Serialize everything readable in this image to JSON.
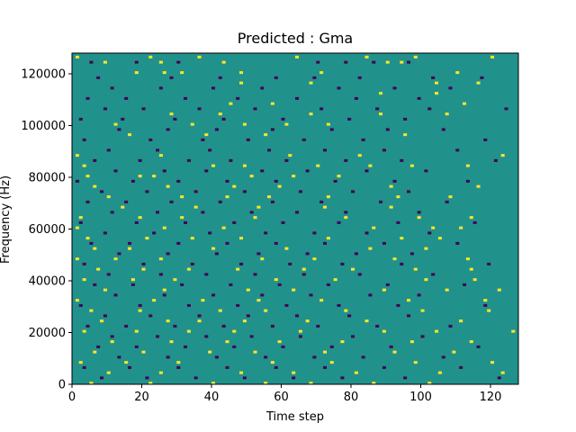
{
  "chart_data": {
    "type": "heatmap",
    "title": "Predicted : Gma",
    "xlabel": "Time step",
    "ylabel": "Frequency (Hz)",
    "xlim": [
      0,
      128
    ],
    "ylim": [
      0,
      128000
    ],
    "x_ticks": [
      0,
      20,
      40,
      60,
      80,
      100,
      120
    ],
    "y_ticks": [
      0,
      20000,
      40000,
      60000,
      80000,
      100000,
      120000
    ],
    "x_tick_labels": [
      "0",
      "20",
      "40",
      "60",
      "80",
      "100",
      "120"
    ],
    "y_tick_labels": [
      "0",
      "20000",
      "40000",
      "60000",
      "80000",
      "100000",
      "120000"
    ],
    "grid": false,
    "colormap": "viridis",
    "value_levels": {
      "low": -1,
      "mid": 0,
      "high": 1
    },
    "colors": {
      "low": "#440154",
      "mid": "#21918c",
      "high": "#fde725"
    },
    "background_value": 0,
    "cells_note_units": "columns = time step (0-127), rows = frequency bin (0-127, each 1000 Hz)",
    "high_cells": [
      [
        1,
        126
      ],
      [
        22,
        126
      ],
      [
        36,
        126
      ],
      [
        64,
        126
      ],
      [
        84,
        126
      ],
      [
        98,
        126
      ],
      [
        120,
        126
      ],
      [
        9,
        124
      ],
      [
        25,
        124
      ],
      [
        43,
        124
      ],
      [
        90,
        124
      ],
      [
        94,
        124
      ],
      [
        18,
        120
      ],
      [
        26,
        120
      ],
      [
        31,
        120
      ],
      [
        48,
        120
      ],
      [
        71,
        120
      ],
      [
        110,
        120
      ],
      [
        48,
        116
      ],
      [
        68,
        116
      ],
      [
        104,
        116
      ],
      [
        116,
        116
      ],
      [
        88,
        112
      ],
      [
        104,
        112
      ],
      [
        45,
        108
      ],
      [
        57,
        108
      ],
      [
        112,
        108
      ],
      [
        28,
        104
      ],
      [
        42,
        104
      ],
      [
        68,
        104
      ],
      [
        88,
        104
      ],
      [
        107,
        104
      ],
      [
        12,
        100
      ],
      [
        34,
        100
      ],
      [
        49,
        100
      ],
      [
        61,
        100
      ],
      [
        73,
        100
      ],
      [
        16,
        96
      ],
      [
        38,
        96
      ],
      [
        55,
        96
      ],
      [
        95,
        96
      ],
      [
        1,
        88
      ],
      [
        25,
        88
      ],
      [
        62,
        88
      ],
      [
        82,
        88
      ],
      [
        123,
        88
      ],
      [
        3,
        84
      ],
      [
        40,
        84
      ],
      [
        49,
        84
      ],
      [
        70,
        84
      ],
      [
        85,
        84
      ],
      [
        97,
        84
      ],
      [
        113,
        84
      ],
      [
        4,
        80
      ],
      [
        19,
        80
      ],
      [
        23,
        80
      ],
      [
        51,
        80
      ],
      [
        63,
        80
      ],
      [
        76,
        80
      ],
      [
        6,
        76
      ],
      [
        27,
        76
      ],
      [
        46,
        76
      ],
      [
        59,
        76
      ],
      [
        91,
        76
      ],
      [
        116,
        76
      ],
      [
        10,
        72
      ],
      [
        31,
        72
      ],
      [
        44,
        72
      ],
      [
        56,
        72
      ],
      [
        73,
        72
      ],
      [
        93,
        72
      ],
      [
        108,
        72
      ],
      [
        14,
        68
      ],
      [
        35,
        68
      ],
      [
        53,
        68
      ],
      [
        72,
        68
      ],
      [
        91,
        68
      ],
      [
        2,
        64
      ],
      [
        19,
        64
      ],
      [
        31,
        64
      ],
      [
        52,
        64
      ],
      [
        78,
        64
      ],
      [
        99,
        64
      ],
      [
        114,
        64
      ],
      [
        1,
        60
      ],
      [
        26,
        60
      ],
      [
        43,
        60
      ],
      [
        86,
        60
      ],
      [
        103,
        60
      ],
      [
        111,
        60
      ],
      [
        4,
        56
      ],
      [
        21,
        56
      ],
      [
        34,
        56
      ],
      [
        48,
        56
      ],
      [
        73,
        56
      ],
      [
        94,
        56
      ],
      [
        105,
        56
      ],
      [
        6,
        52
      ],
      [
        16,
        52
      ],
      [
        40,
        52
      ],
      [
        61,
        52
      ],
      [
        85,
        52
      ],
      [
        101,
        52
      ],
      [
        1,
        48
      ],
      [
        12,
        48
      ],
      [
        25,
        48
      ],
      [
        54,
        48
      ],
      [
        69,
        48
      ],
      [
        92,
        48
      ],
      [
        113,
        48
      ],
      [
        7,
        44
      ],
      [
        20,
        44
      ],
      [
        33,
        44
      ],
      [
        47,
        44
      ],
      [
        66,
        44
      ],
      [
        80,
        44
      ],
      [
        98,
        44
      ],
      [
        114,
        44
      ],
      [
        3,
        40
      ],
      [
        17,
        40
      ],
      [
        29,
        40
      ],
      [
        58,
        40
      ],
      [
        75,
        40
      ],
      [
        101,
        40
      ],
      [
        115,
        40
      ],
      [
        9,
        36
      ],
      [
        26,
        36
      ],
      [
        50,
        36
      ],
      [
        63,
        36
      ],
      [
        89,
        36
      ],
      [
        107,
        36
      ],
      [
        122,
        36
      ],
      [
        1,
        32
      ],
      [
        23,
        32
      ],
      [
        37,
        32
      ],
      [
        53,
        32
      ],
      [
        71,
        32
      ],
      [
        96,
        32
      ],
      [
        118,
        32
      ],
      [
        5,
        28
      ],
      [
        19,
        28
      ],
      [
        42,
        28
      ],
      [
        55,
        28
      ],
      [
        78,
        28
      ],
      [
        100,
        28
      ],
      [
        119,
        28
      ],
      [
        8,
        24
      ],
      [
        27,
        24
      ],
      [
        36,
        24
      ],
      [
        49,
        24
      ],
      [
        67,
        24
      ],
      [
        84,
        24
      ],
      [
        111,
        24
      ],
      [
        3,
        20
      ],
      [
        18,
        20
      ],
      [
        33,
        20
      ],
      [
        46,
        20
      ],
      [
        65,
        20
      ],
      [
        89,
        20
      ],
      [
        104,
        20
      ],
      [
        126,
        20
      ],
      [
        11,
        16
      ],
      [
        28,
        16
      ],
      [
        44,
        16
      ],
      [
        59,
        16
      ],
      [
        77,
        16
      ],
      [
        97,
        16
      ],
      [
        114,
        16
      ],
      [
        6,
        12
      ],
      [
        20,
        12
      ],
      [
        39,
        12
      ],
      [
        52,
        12
      ],
      [
        72,
        12
      ],
      [
        92,
        12
      ],
      [
        109,
        12
      ],
      [
        2,
        8
      ],
      [
        15,
        8
      ],
      [
        30,
        8
      ],
      [
        57,
        8
      ],
      [
        74,
        8
      ],
      [
        98,
        8
      ],
      [
        120,
        8
      ],
      [
        10,
        4
      ],
      [
        25,
        4
      ],
      [
        48,
        4
      ],
      [
        63,
        4
      ],
      [
        81,
        4
      ],
      [
        105,
        4
      ],
      [
        123,
        4
      ],
      [
        5,
        0
      ],
      [
        22,
        0
      ],
      [
        40,
        0
      ],
      [
        55,
        0
      ],
      [
        68,
        0
      ],
      [
        86,
        0
      ],
      [
        102,
        0
      ]
    ],
    "low_cells": [
      [
        5,
        124
      ],
      [
        18,
        124
      ],
      [
        30,
        124
      ],
      [
        70,
        124
      ],
      [
        78,
        124
      ],
      [
        86,
        124
      ],
      [
        96,
        124
      ],
      [
        7,
        118
      ],
      [
        28,
        118
      ],
      [
        42,
        118
      ],
      [
        58,
        118
      ],
      [
        69,
        118
      ],
      [
        82,
        118
      ],
      [
        103,
        118
      ],
      [
        117,
        118
      ],
      [
        11,
        114
      ],
      [
        25,
        114
      ],
      [
        40,
        114
      ],
      [
        54,
        114
      ],
      [
        76,
        114
      ],
      [
        92,
        114
      ],
      [
        108,
        114
      ],
      [
        4,
        110
      ],
      [
        15,
        110
      ],
      [
        32,
        110
      ],
      [
        47,
        110
      ],
      [
        64,
        110
      ],
      [
        81,
        110
      ],
      [
        99,
        110
      ],
      [
        9,
        106
      ],
      [
        20,
        106
      ],
      [
        36,
        106
      ],
      [
        52,
        106
      ],
      [
        71,
        106
      ],
      [
        87,
        106
      ],
      [
        102,
        106
      ],
      [
        124,
        106
      ],
      [
        2,
        102
      ],
      [
        14,
        102
      ],
      [
        29,
        102
      ],
      [
        43,
        102
      ],
      [
        60,
        102
      ],
      [
        79,
        102
      ],
      [
        95,
        102
      ],
      [
        13,
        98
      ],
      [
        27,
        98
      ],
      [
        41,
        98
      ],
      [
        57,
        98
      ],
      [
        74,
        98
      ],
      [
        90,
        98
      ],
      [
        106,
        98
      ],
      [
        3,
        94
      ],
      [
        22,
        94
      ],
      [
        37,
        94
      ],
      [
        50,
        94
      ],
      [
        66,
        94
      ],
      [
        83,
        94
      ],
      [
        118,
        94
      ],
      [
        10,
        90
      ],
      [
        24,
        90
      ],
      [
        39,
        90
      ],
      [
        56,
        90
      ],
      [
        72,
        90
      ],
      [
        89,
        90
      ],
      [
        110,
        90
      ],
      [
        6,
        86
      ],
      [
        19,
        86
      ],
      [
        33,
        86
      ],
      [
        45,
        86
      ],
      [
        61,
        86
      ],
      [
        78,
        86
      ],
      [
        94,
        86
      ],
      [
        121,
        86
      ],
      [
        12,
        82
      ],
      [
        26,
        82
      ],
      [
        38,
        82
      ],
      [
        54,
        82
      ],
      [
        67,
        82
      ],
      [
        84,
        82
      ],
      [
        101,
        82
      ],
      [
        1,
        78
      ],
      [
        17,
        78
      ],
      [
        30,
        78
      ],
      [
        44,
        78
      ],
      [
        58,
        78
      ],
      [
        75,
        78
      ],
      [
        92,
        78
      ],
      [
        113,
        78
      ],
      [
        8,
        74
      ],
      [
        21,
        74
      ],
      [
        35,
        74
      ],
      [
        49,
        74
      ],
      [
        65,
        74
      ],
      [
        80,
        74
      ],
      [
        96,
        74
      ],
      [
        4,
        70
      ],
      [
        15,
        70
      ],
      [
        28,
        70
      ],
      [
        42,
        70
      ],
      [
        57,
        70
      ],
      [
        71,
        70
      ],
      [
        88,
        70
      ],
      [
        107,
        70
      ],
      [
        11,
        66
      ],
      [
        24,
        66
      ],
      [
        37,
        66
      ],
      [
        51,
        66
      ],
      [
        64,
        66
      ],
      [
        78,
        66
      ],
      [
        99,
        66
      ],
      [
        2,
        62
      ],
      [
        18,
        62
      ],
      [
        32,
        62
      ],
      [
        46,
        62
      ],
      [
        60,
        62
      ],
      [
        76,
        62
      ],
      [
        93,
        62
      ],
      [
        115,
        62
      ],
      [
        9,
        58
      ],
      [
        23,
        58
      ],
      [
        39,
        58
      ],
      [
        55,
        58
      ],
      [
        69,
        58
      ],
      [
        84,
        58
      ],
      [
        102,
        58
      ],
      [
        5,
        54
      ],
      [
        16,
        54
      ],
      [
        30,
        54
      ],
      [
        44,
        54
      ],
      [
        58,
        54
      ],
      [
        72,
        54
      ],
      [
        89,
        54
      ],
      [
        110,
        54
      ],
      [
        13,
        50
      ],
      [
        27,
        50
      ],
      [
        41,
        50
      ],
      [
        53,
        50
      ],
      [
        67,
        50
      ],
      [
        81,
        50
      ],
      [
        97,
        50
      ],
      [
        3,
        46
      ],
      [
        20,
        46
      ],
      [
        34,
        46
      ],
      [
        48,
        46
      ],
      [
        62,
        46
      ],
      [
        77,
        46
      ],
      [
        94,
        46
      ],
      [
        119,
        46
      ],
      [
        10,
        42
      ],
      [
        25,
        42
      ],
      [
        38,
        42
      ],
      [
        52,
        42
      ],
      [
        66,
        42
      ],
      [
        82,
        42
      ],
      [
        103,
        42
      ],
      [
        6,
        38
      ],
      [
        17,
        38
      ],
      [
        31,
        38
      ],
      [
        45,
        38
      ],
      [
        59,
        38
      ],
      [
        73,
        38
      ],
      [
        90,
        38
      ],
      [
        112,
        38
      ],
      [
        12,
        34
      ],
      [
        26,
        34
      ],
      [
        40,
        34
      ],
      [
        54,
        34
      ],
      [
        68,
        34
      ],
      [
        85,
        34
      ],
      [
        99,
        34
      ],
      [
        2,
        30
      ],
      [
        19,
        30
      ],
      [
        33,
        30
      ],
      [
        47,
        30
      ],
      [
        61,
        30
      ],
      [
        76,
        30
      ],
      [
        93,
        30
      ],
      [
        118,
        30
      ],
      [
        9,
        26
      ],
      [
        22,
        26
      ],
      [
        36,
        26
      ],
      [
        50,
        26
      ],
      [
        64,
        26
      ],
      [
        79,
        26
      ],
      [
        96,
        26
      ],
      [
        4,
        22
      ],
      [
        15,
        22
      ],
      [
        29,
        22
      ],
      [
        43,
        22
      ],
      [
        57,
        22
      ],
      [
        70,
        22
      ],
      [
        87,
        22
      ],
      [
        108,
        22
      ],
      [
        11,
        18
      ],
      [
        24,
        18
      ],
      [
        38,
        18
      ],
      [
        51,
        18
      ],
      [
        65,
        18
      ],
      [
        80,
        18
      ],
      [
        100,
        18
      ],
      [
        7,
        14
      ],
      [
        18,
        14
      ],
      [
        32,
        14
      ],
      [
        46,
        14
      ],
      [
        60,
        14
      ],
      [
        74,
        14
      ],
      [
        91,
        14
      ],
      [
        116,
        14
      ],
      [
        13,
        10
      ],
      [
        27,
        10
      ],
      [
        41,
        10
      ],
      [
        55,
        10
      ],
      [
        69,
        10
      ],
      [
        83,
        10
      ],
      [
        106,
        10
      ],
      [
        3,
        6
      ],
      [
        16,
        6
      ],
      [
        30,
        6
      ],
      [
        44,
        6
      ],
      [
        58,
        6
      ],
      [
        72,
        6
      ],
      [
        89,
        6
      ],
      [
        111,
        6
      ],
      [
        8,
        2
      ],
      [
        21,
        2
      ],
      [
        35,
        2
      ],
      [
        49,
        2
      ],
      [
        63,
        2
      ],
      [
        77,
        2
      ],
      [
        95,
        2
      ],
      [
        122,
        2
      ]
    ]
  }
}
